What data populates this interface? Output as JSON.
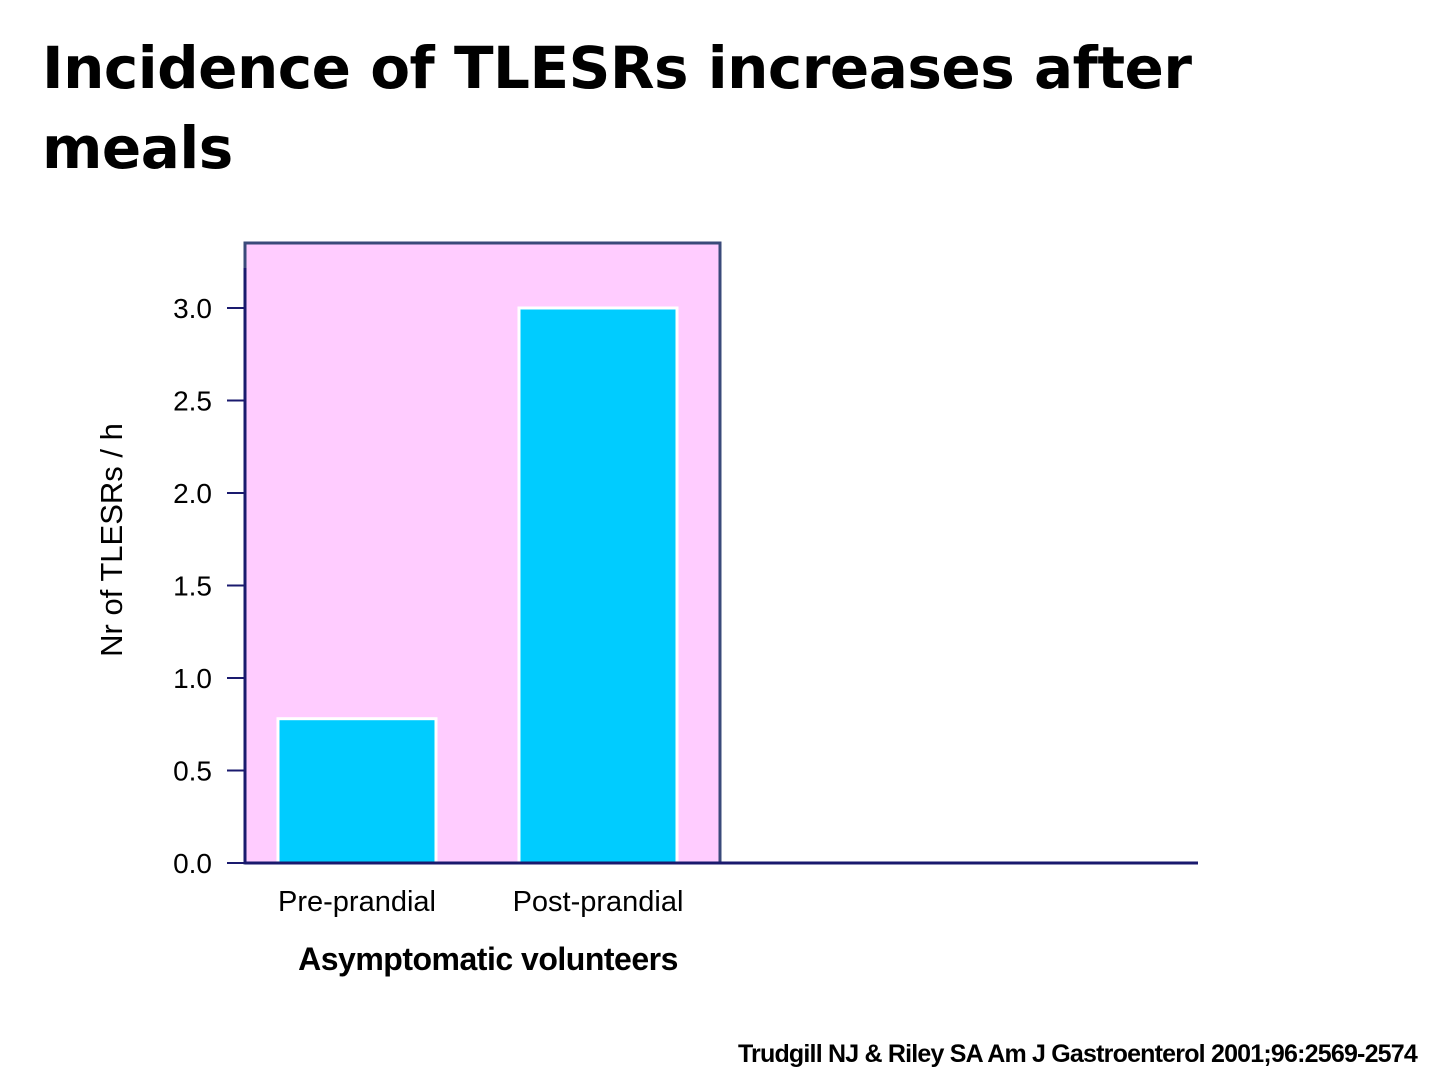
{
  "slide": {
    "title": "Incidence of TLESRs increases after meals",
    "citation": "Trudgill NJ & Riley SA  Am J Gastroenterol 2001;96:2569-2574"
  },
  "colors": {
    "panel_fill": "#ffccff",
    "panel_border": "#3a4a7a",
    "bar_fill": "#00ccff",
    "bar_stroke": "#ffffff",
    "axis": "#1a1a6e",
    "text": "#000000"
  },
  "chart_data": {
    "type": "bar",
    "title": "",
    "categories": [
      "Pre-prandial",
      "Post-prandial"
    ],
    "values": [
      0.78,
      3.0
    ],
    "xlabel": "Asymptomatic volunteers",
    "ylabel": "Nr of TLESRs / h",
    "ylim": [
      0,
      3.3
    ],
    "yticks": [
      "0.0",
      "0.5",
      "1.0",
      "1.5",
      "2.0",
      "2.5",
      "3.0"
    ],
    "grid": false,
    "legend": "none"
  }
}
